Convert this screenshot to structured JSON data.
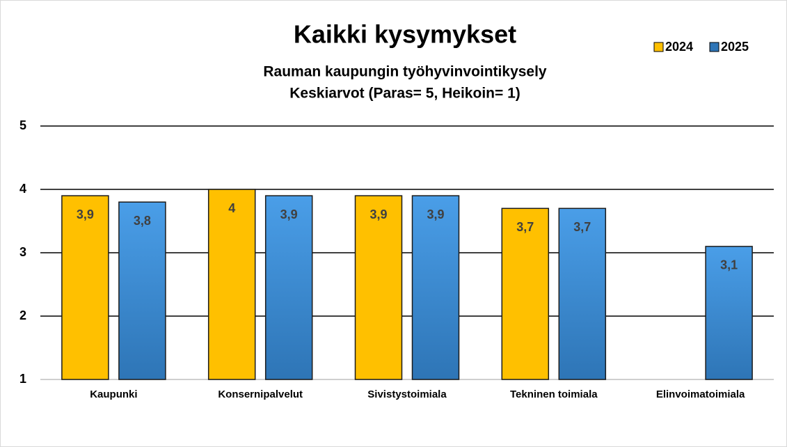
{
  "chart_data": {
    "type": "bar",
    "title": "Kaikki kysymykset",
    "subtitle": [
      "Rauman kaupungin työhyvinvointikysely",
      "Keskiarvot (Paras= 5, Heikoin= 1)"
    ],
    "categories": [
      "Kaupunki",
      "Konsernipalvelut",
      "Sivistystoimiala",
      "Tekninen toimiala",
      "Elinvoimatoimiala"
    ],
    "series": [
      {
        "name": "2024",
        "color": "#FFC000",
        "values": [
          3.9,
          4,
          3.9,
          3.7,
          null
        ],
        "value_labels": [
          "3,9",
          "4",
          "3,9",
          "3,7",
          null
        ]
      },
      {
        "name": "2025",
        "color": "#2E75B6",
        "values": [
          3.8,
          3.9,
          3.9,
          3.7,
          3.1
        ],
        "value_labels": [
          "3,8",
          "3,9",
          "3,9",
          "3,7",
          "3,1"
        ]
      }
    ],
    "ylim": [
      1,
      5
    ],
    "yticks": [
      1,
      2,
      3,
      4,
      5
    ],
    "grid": true,
    "legend": "top-right"
  }
}
